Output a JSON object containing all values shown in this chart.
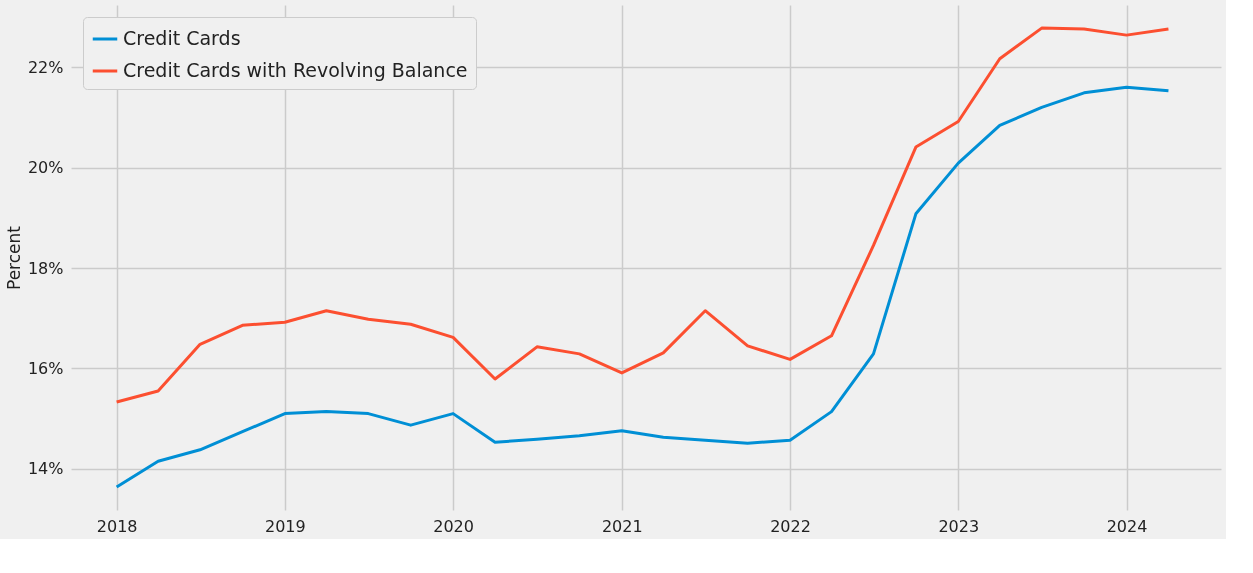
{
  "chart_data": {
    "type": "line",
    "ylabel": "Percent",
    "x": [
      "2018-01-01",
      "2018-04-01",
      "2018-07-01",
      "2018-10-01",
      "2019-01-01",
      "2019-04-01",
      "2019-07-01",
      "2019-10-01",
      "2020-01-01",
      "2020-04-01",
      "2020-07-01",
      "2020-10-01",
      "2021-01-01",
      "2021-04-01",
      "2021-07-01",
      "2021-10-01",
      "2022-01-01",
      "2022-04-01",
      "2022-07-01",
      "2022-10-01",
      "2023-01-01",
      "2023-04-01",
      "2023-07-01",
      "2023-10-01",
      "2024-01-01",
      "2024-04-01"
    ],
    "series": [
      {
        "name": "Credit Cards",
        "color": "#008fd5",
        "values": [
          13.64,
          14.15,
          14.38,
          14.74,
          15.1,
          15.14,
          15.1,
          14.87,
          15.1,
          14.53,
          14.59,
          14.66,
          14.76,
          14.63,
          14.57,
          14.51,
          14.57,
          15.14,
          16.29,
          19.08,
          20.09,
          20.84,
          21.2,
          21.49,
          21.6,
          21.53
        ]
      },
      {
        "name": "Credit Cards with Revolving Balance",
        "color": "#fc4f30",
        "values": [
          15.33,
          15.55,
          16.48,
          16.86,
          16.92,
          17.15,
          16.98,
          16.88,
          16.62,
          15.79,
          16.43,
          16.29,
          15.91,
          16.31,
          17.15,
          16.45,
          16.18,
          16.65,
          18.45,
          20.41,
          20.92,
          22.17,
          22.78,
          22.76,
          22.64,
          22.76
        ]
      }
    ],
    "xlim": [
      "2017-09-24",
      "2024-07-24"
    ],
    "xticks": [
      "2018",
      "2019",
      "2020",
      "2021",
      "2022",
      "2023",
      "2024"
    ],
    "ylim": [
      13.18,
      23.24
    ],
    "yticks": [
      {
        "value": 14,
        "label": "14%"
      },
      {
        "value": 16,
        "label": "16%"
      },
      {
        "value": 18,
        "label": "18%"
      },
      {
        "value": 20,
        "label": "20%"
      },
      {
        "value": 22,
        "label": "22%"
      }
    ],
    "grid": true,
    "legend": "top left",
    "line_style": "solid",
    "marker": "none"
  }
}
